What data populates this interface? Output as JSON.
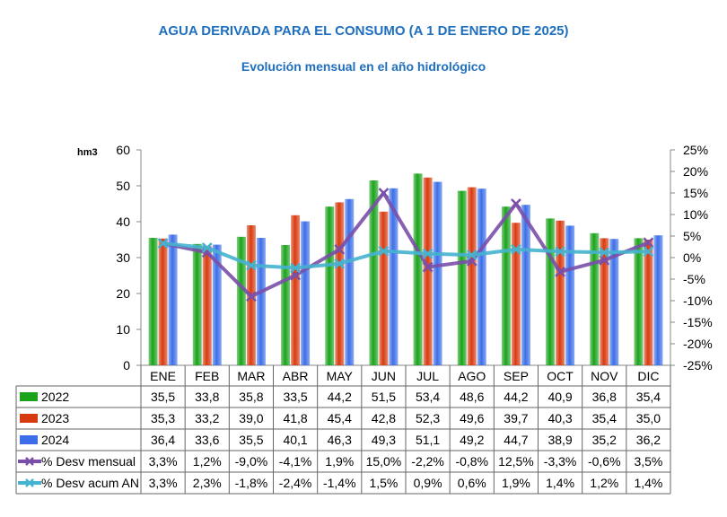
{
  "title": "AGUA DERIVADA PARA EL CONSUMO (A 1 DE ENERO DE 2025)",
  "subtitle": "Evolución mensual en el año hidrológico",
  "colors": {
    "title": "#1f6fbf",
    "s2022": "#1aa31a",
    "s2023": "#d83a0f",
    "s2024": "#3b6ee8",
    "mensual": "#7a4fa8",
    "acum": "#45b3cf"
  },
  "chart_data": {
    "type": "bar",
    "ylabel": "hm3",
    "ylim": [
      0,
      60
    ],
    "y_ticks": [
      "0",
      "10",
      "20",
      "30",
      "40",
      "50",
      "60"
    ],
    "y2lim": [
      -25,
      25
    ],
    "y2_ticks": [
      "-25%",
      "-20%",
      "-15%",
      "-10%",
      "-5%",
      "0%",
      "5%",
      "10%",
      "15%",
      "20%",
      "25%"
    ],
    "grid": false,
    "legend": "data table below chart",
    "categories": [
      "ENE",
      "FEB",
      "MAR",
      "ABR",
      "MAY",
      "JUN",
      "JUL",
      "AGO",
      "SEP",
      "OCT",
      "NOV",
      "DIC"
    ],
    "bar_series": [
      {
        "name": "2022",
        "color": "#1aa31a",
        "values": [
          35.5,
          33.8,
          35.8,
          33.5,
          44.2,
          51.5,
          53.4,
          48.6,
          44.2,
          40.9,
          36.8,
          35.4
        ],
        "labels": [
          "35,5",
          "33,8",
          "35,8",
          "33,5",
          "44,2",
          "51,5",
          "53,4",
          "48,6",
          "44,2",
          "40,9",
          "36,8",
          "35,4"
        ]
      },
      {
        "name": "2023",
        "color": "#d83a0f",
        "values": [
          35.3,
          33.2,
          39.0,
          41.8,
          45.4,
          42.8,
          52.3,
          49.6,
          39.7,
          40.3,
          35.4,
          35.0
        ],
        "labels": [
          "35,3",
          "33,2",
          "39,0",
          "41,8",
          "45,4",
          "42,8",
          "52,3",
          "49,6",
          "39,7",
          "40,3",
          "35,4",
          "35,0"
        ]
      },
      {
        "name": "2024",
        "color": "#3b6ee8",
        "values": [
          36.4,
          33.6,
          35.5,
          40.1,
          46.3,
          49.3,
          51.1,
          49.2,
          44.7,
          38.9,
          35.2,
          36.2
        ],
        "labels": [
          "36,4",
          "33,6",
          "35,5",
          "40,1",
          "46,3",
          "49,3",
          "51,1",
          "49,2",
          "44,7",
          "38,9",
          "35,2",
          "36,2"
        ]
      }
    ],
    "line_series": [
      {
        "name": "% Desv mensual",
        "color": "#7a4fa8",
        "axis": "right",
        "values": [
          3.3,
          1.2,
          -9.0,
          -4.1,
          1.9,
          15.0,
          -2.2,
          -0.8,
          12.5,
          -3.3,
          -0.6,
          3.5
        ],
        "labels": [
          "3,3%",
          "1,2%",
          "-9,0%",
          "-4,1%",
          "1,9%",
          "15,0%",
          "-2,2%",
          "-0,8%",
          "12,5%",
          "-3,3%",
          "-0,6%",
          "3,5%"
        ]
      },
      {
        "name": "% Desv acum AN",
        "color": "#45b3cf",
        "axis": "right",
        "values": [
          3.3,
          2.3,
          -1.8,
          -2.4,
          -1.4,
          1.5,
          0.9,
          0.6,
          1.9,
          1.4,
          1.2,
          1.4
        ],
        "labels": [
          "3,3%",
          "2,3%",
          "-1,8%",
          "-2,4%",
          "-1,4%",
          "1,5%",
          "0,9%",
          "0,6%",
          "1,9%",
          "1,4%",
          "1,2%",
          "1,4%"
        ]
      }
    ]
  }
}
